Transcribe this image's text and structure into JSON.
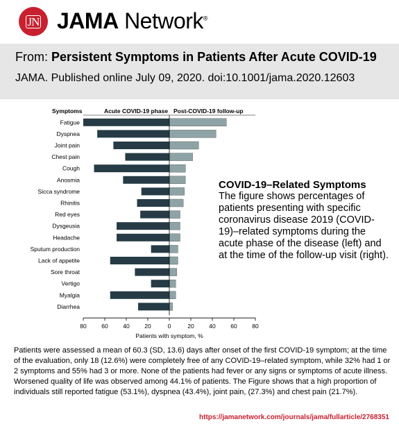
{
  "brand": {
    "logo_text": "JN",
    "name_bold": "JAMA",
    "name_rest": " Network",
    "name_suffix": "®"
  },
  "header": {
    "from_prefix": "From:",
    "article_title": "Persistent Symptoms in Patients After Acute COVID-19",
    "publication": "JAMA. Published online  July 09, 2020. doi:10.1001/jama.2020.12603"
  },
  "colors": {
    "brand_red": "#c8202f",
    "acute_bar": "#263b45",
    "followup_bar": "#8ea3a5"
  },
  "chart_data": {
    "type": "bar",
    "orientation": "horizontal-butterfly",
    "category_header": "Symptoms",
    "left_header": "Acute COVID-19 phase",
    "right_header": "Post-COVID-19 follow-up",
    "xlabel": "Patients with symptom, %",
    "xlim": [
      -80,
      80
    ],
    "xticks": [
      "80",
      "60",
      "40",
      "20",
      "0",
      "20",
      "40",
      "60",
      "80"
    ],
    "categories": [
      "Fatigue",
      "Dyspnea",
      "Joint pain",
      "Chest pain",
      "Cough",
      "Anosmia",
      "Sicca syndrome",
      "Rhinitis",
      "Red eyes",
      "Dysgeusia",
      "Headache",
      "Sputum production",
      "Lack of appetite",
      "Sore throat",
      "Vertigo",
      "Myalgia",
      "Diarrhea"
    ],
    "series": [
      {
        "name": "Acute COVID-19 phase",
        "values": [
          80,
          67,
          52,
          41,
          70,
          43,
          26,
          30,
          27,
          49,
          49,
          17,
          55,
          32,
          17,
          55,
          29
        ]
      },
      {
        "name": "Post-COVID-19 follow-up",
        "values": [
          53.1,
          43.4,
          27.3,
          21.7,
          15,
          15,
          14,
          13,
          10,
          10,
          10,
          8,
          8,
          7,
          6,
          6,
          3
        ]
      }
    ]
  },
  "caption": {
    "title": "COVID-19–Related Symptoms",
    "text": "The figure shows percentages of patients presenting with specific coronavirus disease 2019 (COVID-19)–related symptoms during the acute phase of the disease (left) and at the time of the follow-up visit (right)."
  },
  "body_text": "Patients were assessed a mean of 60.3 (SD, 13.6) days after onset of the first COVID-19 symptom; at the time of the evaluation, only 18 (12.6%) were completely free of any COVID-19–related symptom, while 32% had 1 or 2 symptoms and 55% had 3 or more. None of the patients had fever or any signs or symptoms of acute illness. Worsened quality of life was observed among 44.1% of patients. The Figure shows that a high proportion of individuals still reported fatigue (53.1%), dyspnea (43.4%), joint pain, (27.3%) and chest pain (21.7%).",
  "url": "https://jamanetwork.com/journals/jama/fullarticle/2768351"
}
